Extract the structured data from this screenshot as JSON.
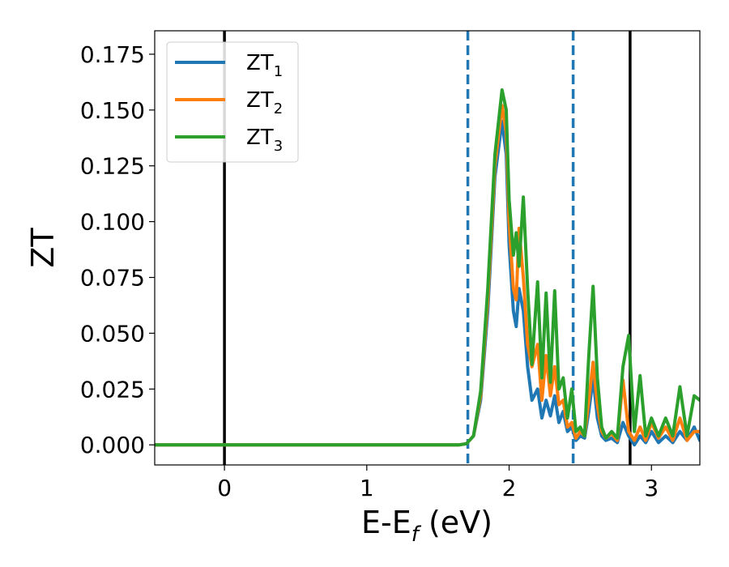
{
  "chart_data": {
    "type": "line",
    "xlabel": "E-E",
    "xlabel_sub": "f",
    "xlabel_unit": " (eV)",
    "ylabel": "ZT",
    "xlim": [
      -0.49,
      3.34
    ],
    "ylim": [
      -0.009,
      0.1855
    ],
    "xticks": [
      0,
      1,
      2,
      3
    ],
    "xtick_labels": [
      "0",
      "1",
      "2",
      "3"
    ],
    "yticks": [
      0.0,
      0.025,
      0.05,
      0.075,
      0.1,
      0.125,
      0.15,
      0.175
    ],
    "ytick_labels": [
      "0.000",
      "0.025",
      "0.050",
      "0.075",
      "0.100",
      "0.125",
      "0.150",
      "0.175"
    ],
    "grid": false,
    "legend": {
      "placement": "top-left",
      "entries": [
        {
          "text": "ZT",
          "sub": "1"
        },
        {
          "text": "ZT",
          "sub": "2"
        },
        {
          "text": "ZT",
          "sub": "3"
        }
      ]
    },
    "vlines": [
      {
        "x": 0.0,
        "style": "solid",
        "color": "#000000"
      },
      {
        "x": 1.71,
        "style": "dashed",
        "color": "#1f77b4"
      },
      {
        "x": 2.45,
        "style": "dashed",
        "color": "#1f77b4"
      },
      {
        "x": 2.85,
        "style": "solid",
        "color": "#000000"
      }
    ],
    "series": [
      {
        "name": "ZT1",
        "color": "#1f77b4",
        "x": [
          -0.49,
          1.55,
          1.65,
          1.7,
          1.75,
          1.8,
          1.85,
          1.9,
          1.95,
          1.98,
          2.0,
          2.03,
          2.05,
          2.07,
          2.1,
          2.13,
          2.16,
          2.2,
          2.23,
          2.26,
          2.29,
          2.32,
          2.35,
          2.38,
          2.41,
          2.44,
          2.47,
          2.5,
          2.53,
          2.56,
          2.59,
          2.62,
          2.65,
          2.68,
          2.72,
          2.76,
          2.8,
          2.84,
          2.88,
          2.92,
          2.96,
          3.0,
          3.05,
          3.1,
          3.15,
          3.2,
          3.25,
          3.3,
          3.34
        ],
        "y": [
          0.0,
          0.0,
          0.0,
          0.0005,
          0.004,
          0.02,
          0.06,
          0.12,
          0.145,
          0.13,
          0.09,
          0.06,
          0.053,
          0.07,
          0.06,
          0.035,
          0.02,
          0.025,
          0.012,
          0.02,
          0.013,
          0.022,
          0.01,
          0.015,
          0.006,
          0.008,
          0.002,
          0.004,
          0.003,
          0.015,
          0.03,
          0.012,
          0.004,
          0.002,
          0.003,
          0.001,
          0.01,
          0.004,
          0.0,
          0.004,
          0.001,
          0.006,
          0.001,
          0.004,
          0.001,
          0.006,
          0.002,
          0.008,
          0.002
        ]
      },
      {
        "name": "ZT2",
        "color": "#ff7f0e",
        "x": [
          -0.49,
          1.55,
          1.65,
          1.7,
          1.75,
          1.8,
          1.85,
          1.9,
          1.95,
          1.98,
          2.0,
          2.03,
          2.05,
          2.07,
          2.1,
          2.13,
          2.16,
          2.2,
          2.23,
          2.26,
          2.29,
          2.32,
          2.35,
          2.38,
          2.41,
          2.44,
          2.47,
          2.5,
          2.53,
          2.56,
          2.59,
          2.62,
          2.65,
          2.68,
          2.72,
          2.76,
          2.8,
          2.84,
          2.88,
          2.92,
          2.96,
          3.0,
          3.05,
          3.1,
          3.15,
          3.2,
          3.25,
          3.3,
          3.34
        ],
        "y": [
          0.0,
          0.0,
          0.0,
          0.0005,
          0.004,
          0.022,
          0.065,
          0.125,
          0.152,
          0.14,
          0.1,
          0.07,
          0.065,
          0.097,
          0.075,
          0.045,
          0.035,
          0.045,
          0.02,
          0.04,
          0.022,
          0.035,
          0.018,
          0.02,
          0.008,
          0.01,
          0.003,
          0.006,
          0.004,
          0.02,
          0.037,
          0.018,
          0.006,
          0.003,
          0.005,
          0.002,
          0.029,
          0.006,
          0.002,
          0.008,
          0.002,
          0.01,
          0.003,
          0.008,
          0.002,
          0.012,
          0.002,
          0.006,
          0.006
        ]
      },
      {
        "name": "ZT3",
        "color": "#2ca02c",
        "x": [
          -0.49,
          1.55,
          1.65,
          1.7,
          1.75,
          1.8,
          1.85,
          1.9,
          1.95,
          1.98,
          2.0,
          2.03,
          2.05,
          2.07,
          2.1,
          2.13,
          2.16,
          2.2,
          2.23,
          2.26,
          2.29,
          2.32,
          2.35,
          2.38,
          2.41,
          2.44,
          2.47,
          2.5,
          2.53,
          2.56,
          2.59,
          2.62,
          2.65,
          2.68,
          2.72,
          2.76,
          2.8,
          2.84,
          2.88,
          2.92,
          2.96,
          3.0,
          3.05,
          3.1,
          3.15,
          3.2,
          3.25,
          3.3,
          3.34
        ],
        "y": [
          0.0,
          0.0,
          0.0,
          0.0005,
          0.004,
          0.024,
          0.07,
          0.13,
          0.159,
          0.15,
          0.11,
          0.085,
          0.095,
          0.08,
          0.111,
          0.07,
          0.036,
          0.073,
          0.03,
          0.068,
          0.028,
          0.069,
          0.025,
          0.03,
          0.012,
          0.025,
          0.006,
          0.008,
          0.004,
          0.04,
          0.071,
          0.03,
          0.008,
          0.003,
          0.006,
          0.003,
          0.035,
          0.049,
          0.006,
          0.031,
          0.004,
          0.012,
          0.004,
          0.012,
          0.004,
          0.026,
          0.004,
          0.022,
          0.02
        ]
      }
    ]
  }
}
